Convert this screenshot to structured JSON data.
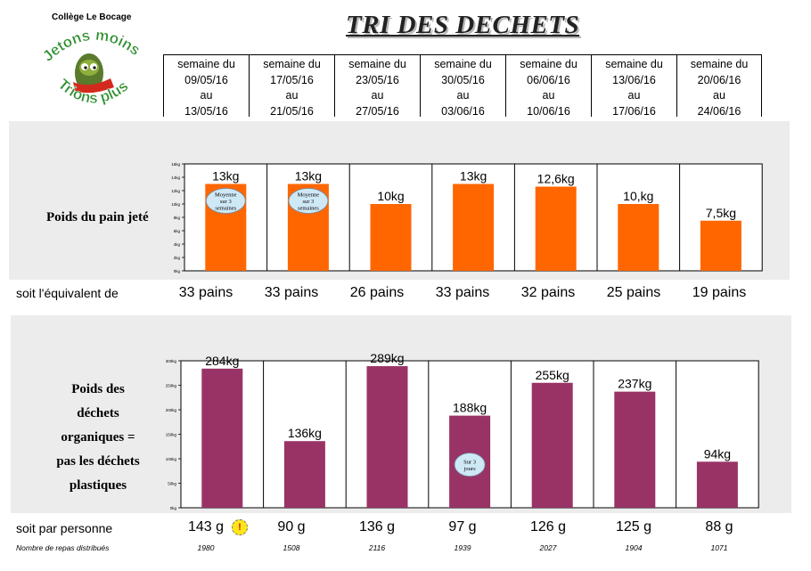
{
  "header": {
    "school": "Collège Le Bocage",
    "title": "TRI DES DECHETS",
    "logo": {
      "line1": "Jetons moins",
      "line2": "Trions plus"
    }
  },
  "weeks": [
    {
      "l1": "semaine du",
      "l2": "09/05/16",
      "l3": "au",
      "l4": "13/05/16"
    },
    {
      "l1": "semaine du",
      "l2": "17/05/16",
      "l3": "au",
      "l4": "21/05/16"
    },
    {
      "l1": "semaine du",
      "l2": "23/05/16",
      "l3": "au",
      "l4": "27/05/16"
    },
    {
      "l1": "semaine du",
      "l2": "30/05/16",
      "l3": "au",
      "l4": "03/06/16"
    },
    {
      "l1": "semaine du",
      "l2": "06/06/16",
      "l3": "au",
      "l4": "10/06/16"
    },
    {
      "l1": "semaine du",
      "l2": "13/06/16",
      "l3": "au",
      "l4": "17/06/16"
    },
    {
      "l1": "semaine du",
      "l2": "20/06/16",
      "l3": "au",
      "l4": "24/06/16"
    }
  ],
  "bread_label": "Poids du pain jeté",
  "organic_label_lines": [
    "Poids des",
    "déchets",
    "organiques =",
    "pas les déchets",
    "plastiques"
  ],
  "equiv_label": "soit l'équivalent de",
  "equiv_values": [
    "33 pains",
    "33 pains",
    "26 pains",
    "33 pains",
    "32 pains",
    "25 pains",
    "19 pains"
  ],
  "per_person_label": "soit par personne",
  "per_person_values": [
    "143 g",
    "90 g",
    "136 g",
    "97 g",
    "126 g",
    "125 g",
    "88 g"
  ],
  "alert_icon": "!",
  "meals_label": "Nombre de repas distribués",
  "meals_values": [
    "1980",
    "1508",
    "2116",
    "1939",
    "2027",
    "1904",
    "1071"
  ],
  "colors": {
    "bread": "#ff6600",
    "organic": "#993366",
    "panel": "#ececec",
    "bubble": "#cfe8f6"
  },
  "chart_data": [
    {
      "type": "bar",
      "ylabel": "",
      "ylim": [
        0,
        16
      ],
      "yticks": [
        "0kg",
        "2kg",
        "4kg",
        "6kg",
        "8kg",
        "10kg",
        "12kg",
        "14kg",
        "16kg"
      ],
      "values": [
        13,
        13,
        10,
        13,
        12.6,
        10,
        7.5
      ],
      "data_labels": [
        "13kg",
        "13kg",
        "10kg",
        "13kg",
        "12,6kg",
        "10,kg",
        "7,5kg"
      ],
      "annotations": [
        {
          "bar": 0,
          "text": [
            "Moyenne",
            "sur 3",
            "semaines"
          ]
        },
        {
          "bar": 1,
          "text": [
            "Moyenne",
            "sur 3",
            "semaines"
          ]
        }
      ]
    },
    {
      "type": "bar",
      "ylabel": "",
      "ylim": [
        0,
        300
      ],
      "yticks": [
        "0kg",
        "50kg",
        "100kg",
        "150kg",
        "200kg",
        "250kg",
        "300kg"
      ],
      "values": [
        284,
        136,
        289,
        188,
        255,
        237,
        94
      ],
      "data_labels": [
        "284kg",
        "136kg",
        "289kg",
        "188kg",
        "255kg",
        "237kg",
        "94kg"
      ],
      "annotations": [
        {
          "bar": 3,
          "text": [
            "Sur 3",
            "jours"
          ]
        }
      ]
    }
  ]
}
